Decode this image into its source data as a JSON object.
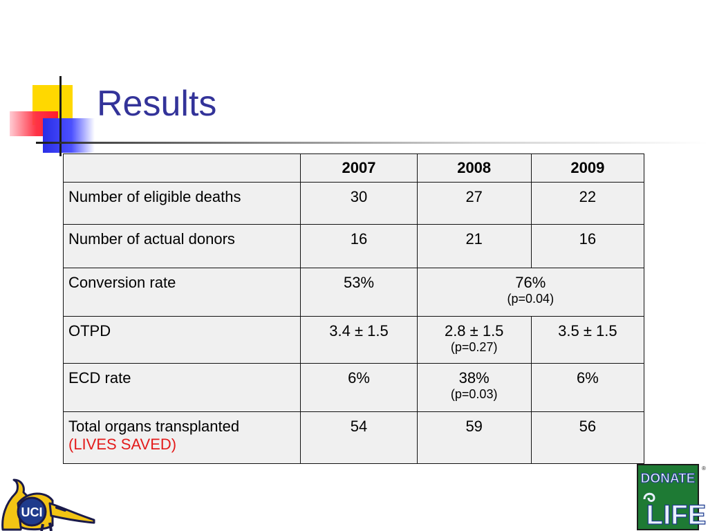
{
  "slide": {
    "title": "Results"
  },
  "table": {
    "headers": [
      "",
      "2007",
      "2008",
      "2009"
    ],
    "rows": {
      "eligible_deaths": {
        "label": "Number of eligible deaths",
        "y2007": "30",
        "y2008": "27",
        "y2009": "22"
      },
      "actual_donors": {
        "label": "Number of actual donors",
        "y2007": "16",
        "y2008": "21",
        "y2009": "16"
      },
      "conversion_rate": {
        "label": "Conversion rate",
        "y2007": "53%",
        "y2008_2009": "76%",
        "y2008_2009_p": "(p=0.04)"
      },
      "otpd": {
        "label": "OTPD",
        "y2007": "3.4 ± 1.5",
        "y2008": "2.8 ± 1.5",
        "y2008_p": "(p=0.27)",
        "y2009": "3.5 ± 1.5"
      },
      "ecd_rate": {
        "label": "ECD rate",
        "y2007": "6%",
        "y2008": "38%",
        "y2008_p": "(p=0.03)",
        "y2009": "6%"
      },
      "total_organs": {
        "label": "Total organs transplanted",
        "sublabel": "(LIVES SAVED)",
        "y2007": "54",
        "y2008": "59",
        "y2009": "56"
      }
    }
  },
  "logos": {
    "uci_text": "UCI",
    "donate_text": "DONATE",
    "life_text": "LIFE",
    "registered": "®"
  },
  "colors": {
    "title": "#333399",
    "lives_saved": "#e31b1b",
    "table_bg": "#f0f0f0"
  }
}
